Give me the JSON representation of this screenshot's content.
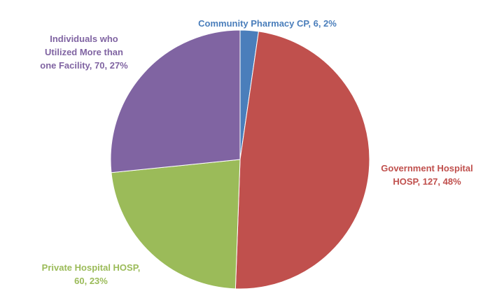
{
  "chart_data": {
    "type": "pie",
    "title": "",
    "legend": "none",
    "slices": [
      {
        "name": "Community Pharmacy CP",
        "value": 6,
        "percent": "2%",
        "color": "#4a7ebb",
        "label_lines": [
          "Community Pharmacy CP, 6, 2%"
        ]
      },
      {
        "name": "Government Hospital HOSP",
        "value": 127,
        "percent": "48%",
        "color": "#c0504d",
        "label_lines": [
          "Government Hospital",
          "HOSP, 127, 48%"
        ]
      },
      {
        "name": "Private Hospital HOSP",
        "value": 60,
        "percent": "23%",
        "color": "#9bbb59",
        "label_lines": [
          "Private Hospital HOSP,",
          "60, 23%"
        ]
      },
      {
        "name": "Individuals who Utilized More than one Facility",
        "value": 70,
        "percent": "27%",
        "color": "#8064a2",
        "label_lines": [
          "Individuals who",
          "Utilized More than",
          "one Facility, 70, 27%"
        ]
      }
    ]
  }
}
